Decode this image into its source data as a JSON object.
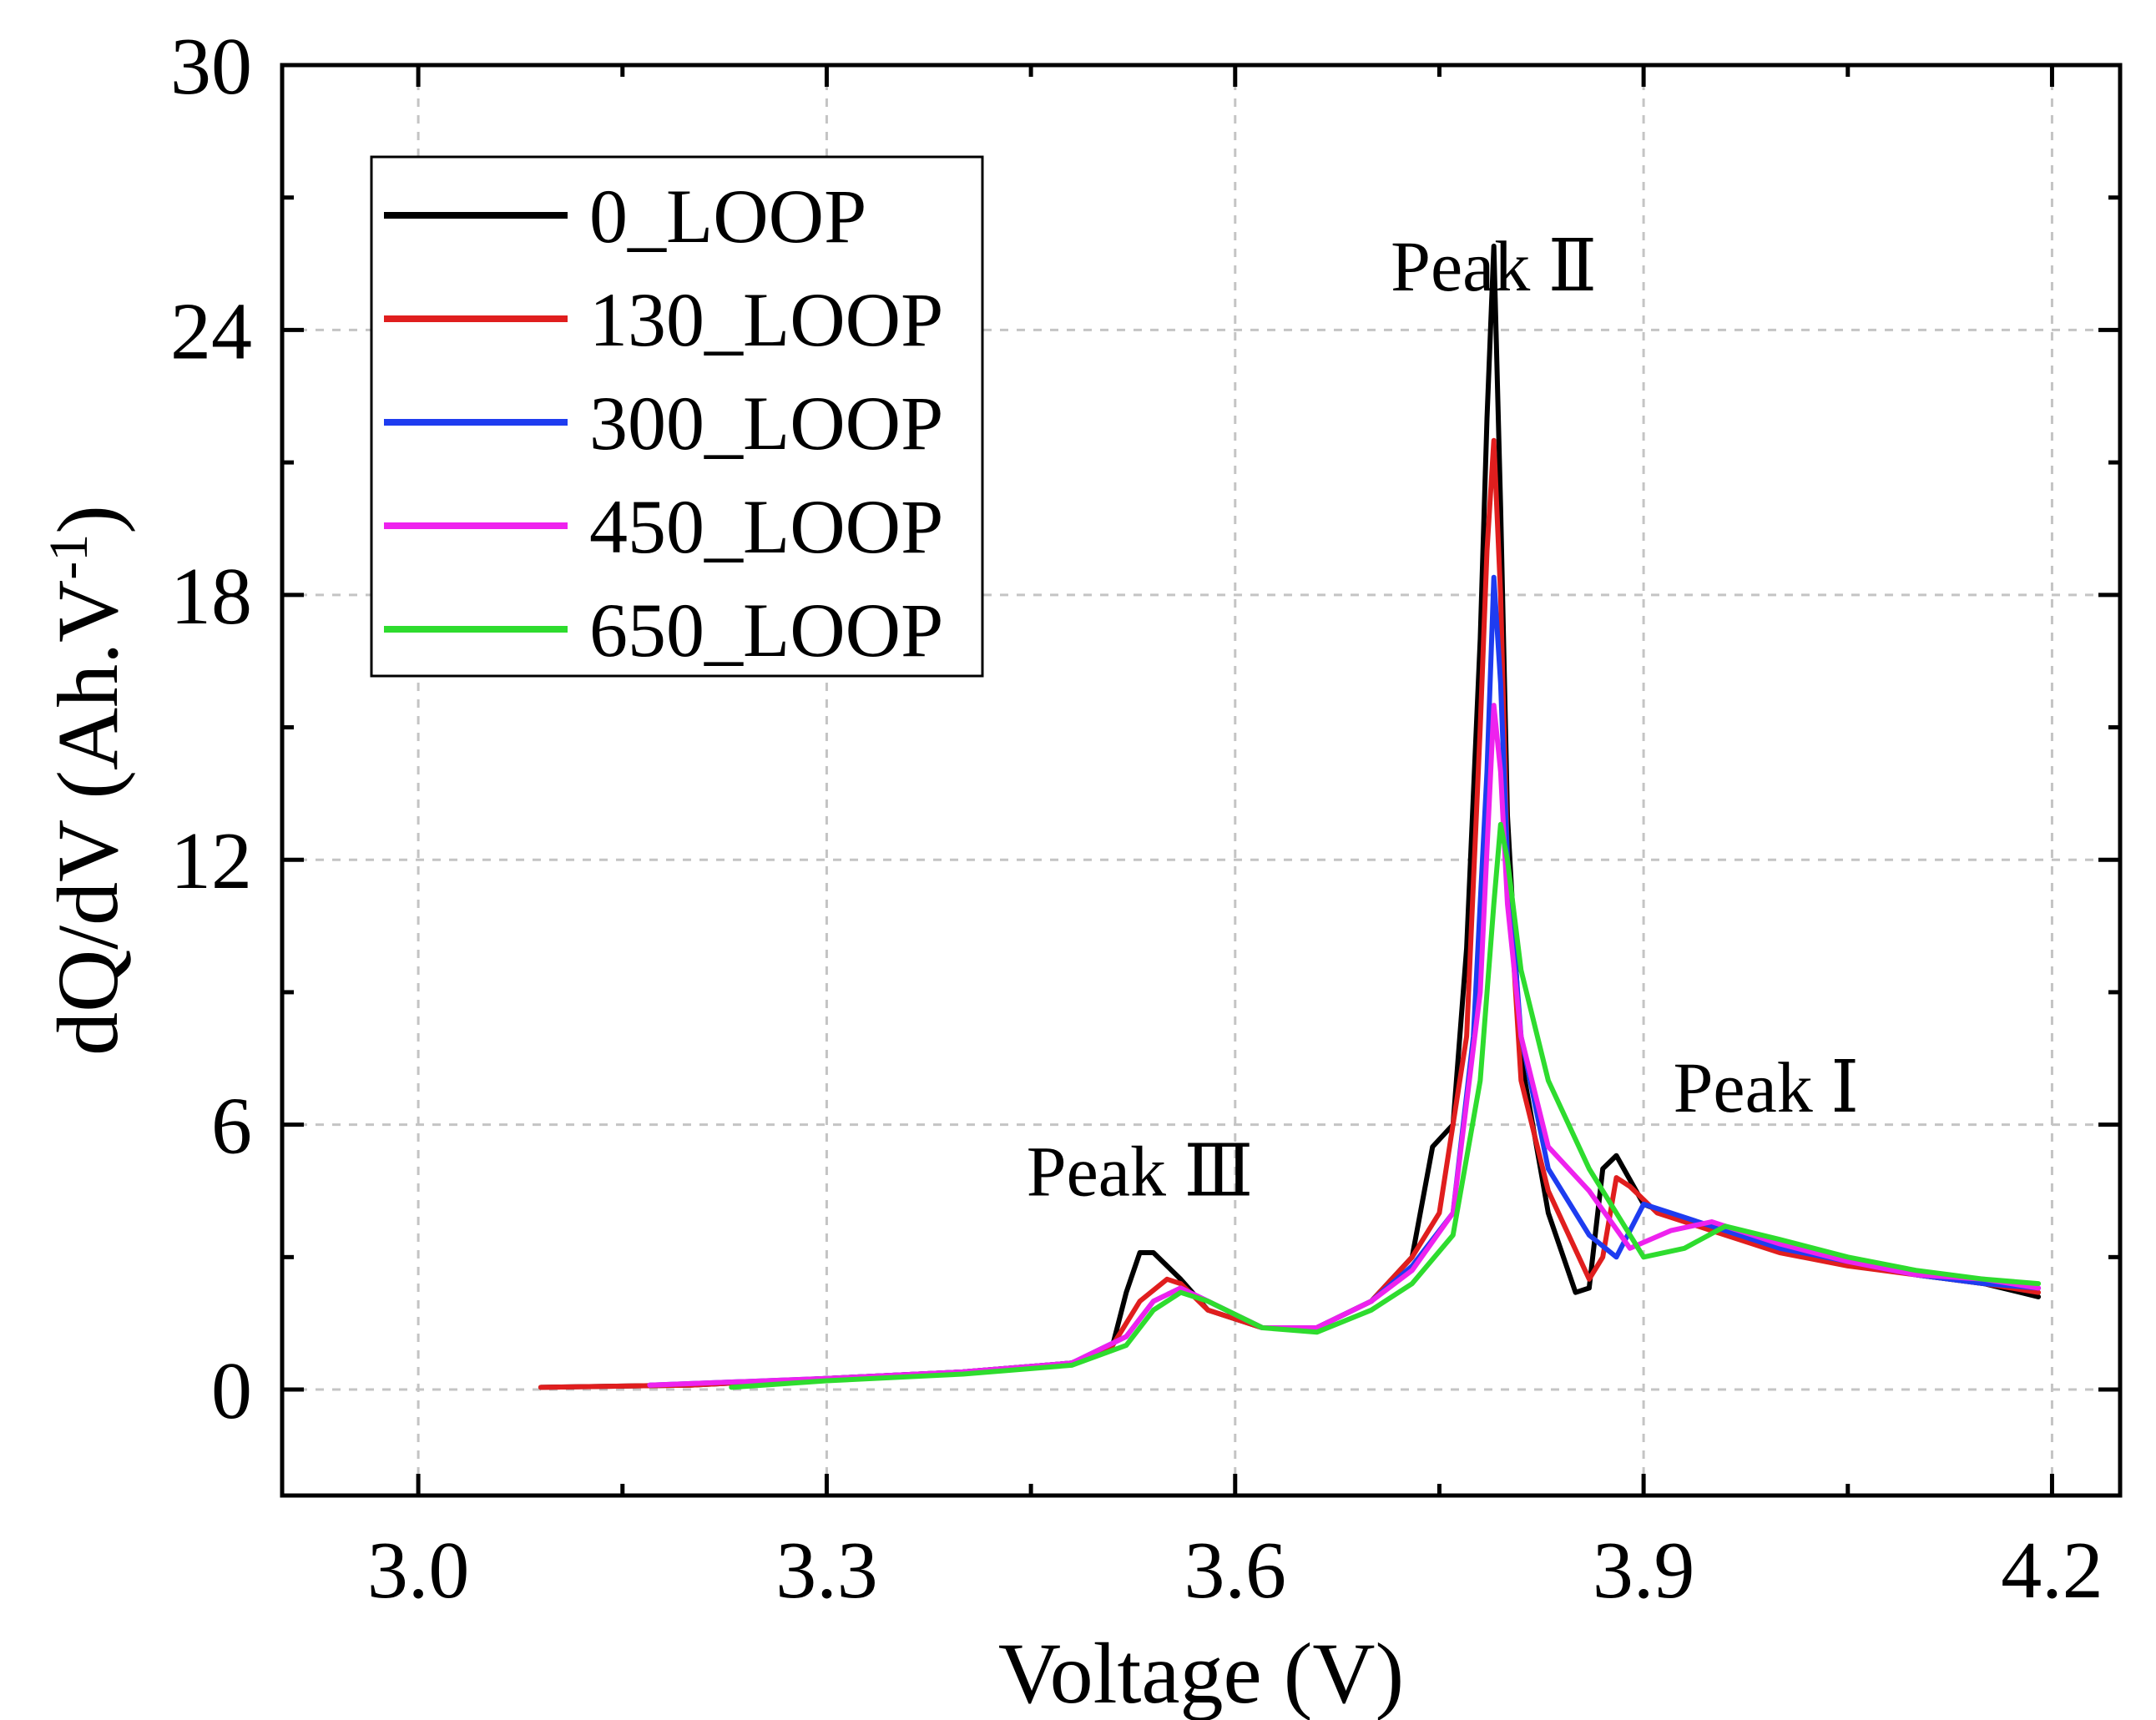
{
  "chart_data": {
    "type": "line",
    "xlabel": "Voltage (V)",
    "ylabel": "dQ/dV (Ah.V",
    "ylabel_superscript": "-1",
    "ylabel_suffix": ")",
    "xlim": [
      2.9,
      4.25
    ],
    "ylim": [
      -2.4,
      30
    ],
    "xticks": [
      3.0,
      3.3,
      3.6,
      3.9,
      4.2
    ],
    "xtick_labels": [
      "3.0",
      "3.3",
      "3.6",
      "3.9",
      "4.2"
    ],
    "yticks": [
      0,
      6,
      12,
      18,
      24,
      30
    ],
    "ytick_labels": [
      "0",
      "6",
      "12",
      "18",
      "24",
      "30"
    ],
    "grid": true,
    "legend": "top-left",
    "annotations": [
      {
        "text": "Peak Ⅱ",
        "x": 3.79,
        "y": 24.9
      },
      {
        "text": "Peak Ⅰ",
        "x": 3.99,
        "y": 6.3
      },
      {
        "text": "Peak Ⅲ",
        "x": 3.53,
        "y": 4.4
      }
    ],
    "series": [
      {
        "name": "0_LOOP",
        "color": "#000000",
        "x": [
          3.09,
          3.2,
          3.3,
          3.4,
          3.48,
          3.51,
          3.52,
          3.53,
          3.54,
          3.56,
          3.58,
          3.62,
          3.66,
          3.7,
          3.73,
          3.745,
          3.76,
          3.77,
          3.78,
          3.785,
          3.79,
          3.795,
          3.8,
          3.81,
          3.83,
          3.85,
          3.86,
          3.87,
          3.88,
          3.9,
          3.95,
          4.0,
          4.05,
          4.1,
          4.15,
          4.19
        ],
        "y": [
          0.05,
          0.1,
          0.25,
          0.4,
          0.6,
          1.0,
          2.2,
          3.1,
          3.1,
          2.5,
          1.8,
          1.4,
          1.4,
          2.0,
          3.0,
          5.5,
          6.0,
          10.0,
          17.0,
          22.0,
          25.9,
          20.0,
          13.0,
          7.5,
          4.0,
          2.2,
          2.3,
          5.0,
          5.3,
          4.2,
          3.6,
          3.3,
          2.9,
          2.6,
          2.4,
          2.1
        ]
      },
      {
        "name": "130_LOOP",
        "color": "#e01e1e",
        "x": [
          3.09,
          3.2,
          3.3,
          3.4,
          3.48,
          3.51,
          3.53,
          3.55,
          3.56,
          3.58,
          3.62,
          3.66,
          3.7,
          3.73,
          3.75,
          3.77,
          3.78,
          3.785,
          3.79,
          3.795,
          3.8,
          3.81,
          3.83,
          3.86,
          3.87,
          3.88,
          3.89,
          3.91,
          3.95,
          4.0,
          4.05,
          4.1,
          4.15,
          4.19
        ],
        "y": [
          0.05,
          0.1,
          0.25,
          0.4,
          0.6,
          1.0,
          2.0,
          2.5,
          2.4,
          1.8,
          1.4,
          1.4,
          2.0,
          3.0,
          4.0,
          8.0,
          15.0,
          19.0,
          21.5,
          18.0,
          12.0,
          7.0,
          4.5,
          2.5,
          3.0,
          4.8,
          4.6,
          4.0,
          3.6,
          3.1,
          2.8,
          2.6,
          2.4,
          2.2
        ]
      },
      {
        "name": "300_LOOP",
        "color": "#1e3cf0",
        "x": [
          3.17,
          3.3,
          3.4,
          3.48,
          3.52,
          3.54,
          3.56,
          3.58,
          3.62,
          3.66,
          3.7,
          3.73,
          3.76,
          3.775,
          3.785,
          3.79,
          3.795,
          3.8,
          3.81,
          3.83,
          3.86,
          3.88,
          3.9,
          3.92,
          3.95,
          4.0,
          4.05,
          4.1,
          4.15,
          4.19
        ],
        "y": [
          0.1,
          0.25,
          0.4,
          0.6,
          1.2,
          2.0,
          2.3,
          2.0,
          1.4,
          1.4,
          2.0,
          2.8,
          4.0,
          8.0,
          14.0,
          18.4,
          16.0,
          12.0,
          8.0,
          5.0,
          3.5,
          3.0,
          4.2,
          4.0,
          3.7,
          3.2,
          2.9,
          2.6,
          2.4,
          2.3
        ]
      },
      {
        "name": "450_LOOP",
        "color": "#ee22ee",
        "x": [
          3.17,
          3.3,
          3.4,
          3.48,
          3.52,
          3.54,
          3.56,
          3.58,
          3.62,
          3.66,
          3.7,
          3.73,
          3.76,
          3.78,
          3.79,
          3.795,
          3.8,
          3.81,
          3.83,
          3.86,
          3.89,
          3.92,
          3.95,
          4.0,
          4.05,
          4.1,
          4.15,
          4.19
        ],
        "y": [
          0.1,
          0.25,
          0.4,
          0.6,
          1.2,
          2.0,
          2.3,
          2.0,
          1.4,
          1.4,
          2.0,
          2.7,
          4.0,
          9.0,
          15.5,
          14.0,
          11.0,
          8.0,
          5.5,
          4.5,
          3.2,
          3.6,
          3.8,
          3.3,
          2.9,
          2.6,
          2.5,
          2.3
        ]
      },
      {
        "name": "650_LOOP",
        "color": "#2edc2e",
        "x": [
          3.23,
          3.3,
          3.4,
          3.48,
          3.52,
          3.54,
          3.56,
          3.58,
          3.62,
          3.66,
          3.7,
          3.73,
          3.76,
          3.78,
          3.79,
          3.795,
          3.8,
          3.81,
          3.83,
          3.86,
          3.88,
          3.9,
          3.93,
          3.96,
          4.0,
          4.05,
          4.1,
          4.15,
          4.19
        ],
        "y": [
          0.05,
          0.2,
          0.35,
          0.55,
          1.0,
          1.8,
          2.2,
          2.0,
          1.4,
          1.3,
          1.8,
          2.4,
          3.5,
          7.0,
          11.0,
          12.8,
          12.0,
          9.5,
          7.0,
          5.0,
          4.0,
          3.0,
          3.2,
          3.7,
          3.4,
          3.0,
          2.7,
          2.5,
          2.4
        ]
      }
    ]
  }
}
